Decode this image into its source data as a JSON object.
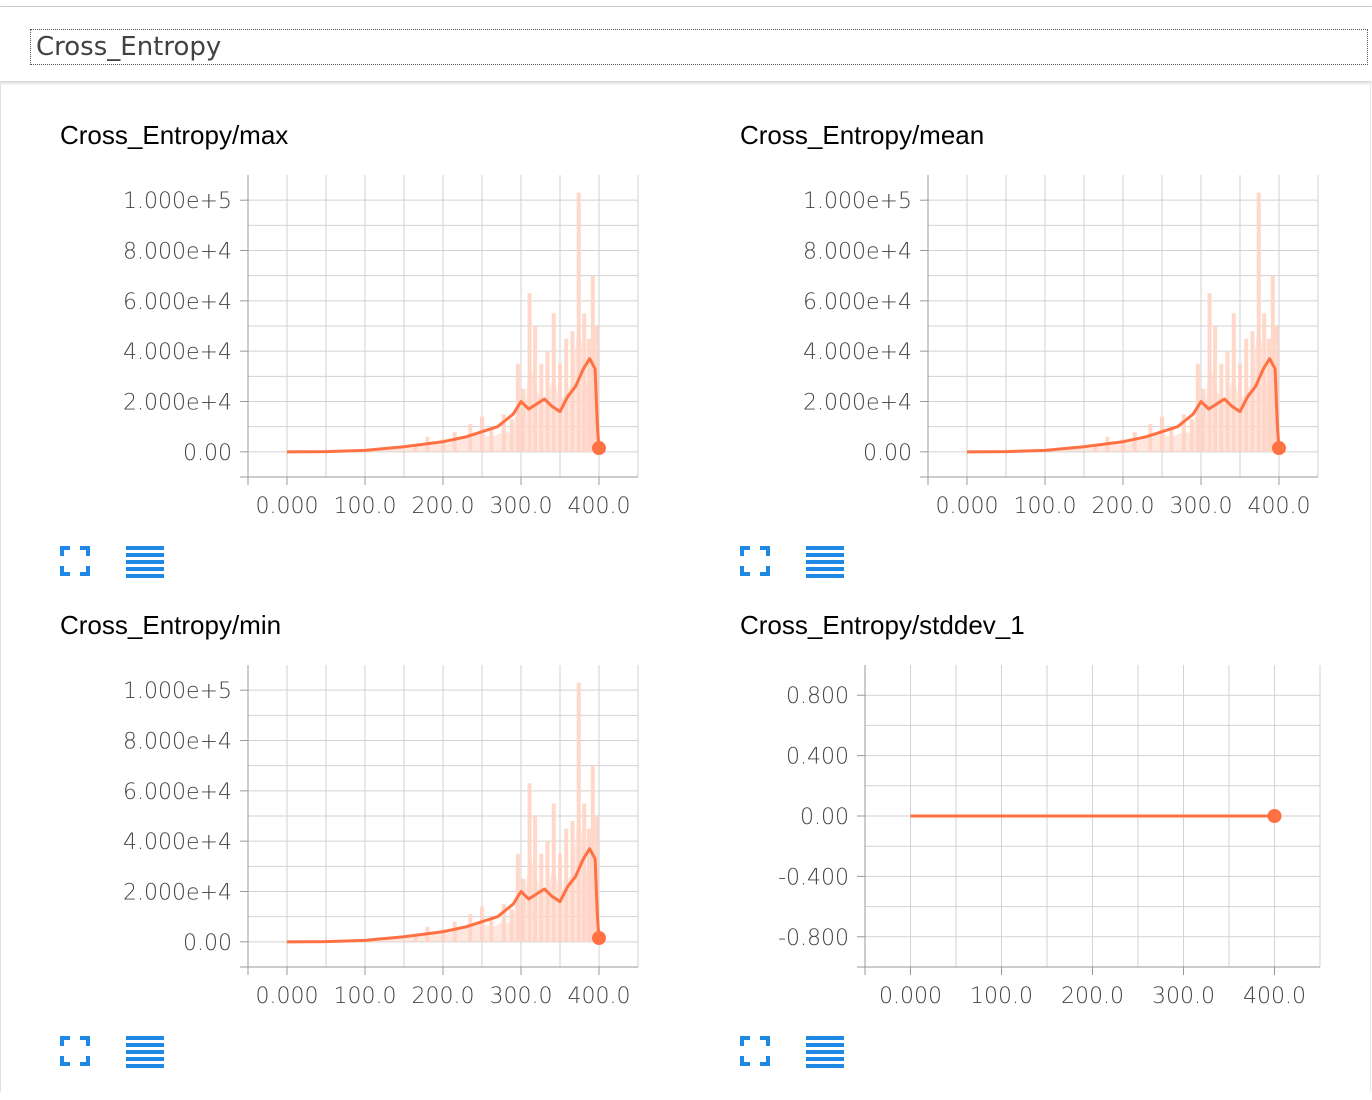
{
  "category": {
    "title": "Cross_Entropy"
  },
  "colors": {
    "line": "#ff7043",
    "raw": "#ffd4c4",
    "grid": "#d2d2d2",
    "icon": "#1e88e5"
  },
  "icons": {
    "expand": "fullscreen-icon",
    "data": "list-icon"
  },
  "charts": [
    {
      "title": "Cross_Entropy/max",
      "yticks": [
        "1.000e+5",
        "8.000e+4",
        "6.000e+4",
        "4.000e+4",
        "2.000e+4",
        "0.00"
      ],
      "xticks": [
        "0.000",
        "100.0",
        "200.0",
        "300.0",
        "400.0"
      ]
    },
    {
      "title": "Cross_Entropy/mean",
      "yticks": [
        "1.000e+5",
        "8.000e+4",
        "6.000e+4",
        "4.000e+4",
        "2.000e+4",
        "0.00"
      ],
      "xticks": [
        "0.000",
        "100.0",
        "200.0",
        "300.0",
        "400.0"
      ]
    },
    {
      "title": "Cross_Entropy/min",
      "yticks": [
        "1.000e+5",
        "8.000e+4",
        "6.000e+4",
        "4.000e+4",
        "2.000e+4",
        "0.00"
      ],
      "xticks": [
        "0.000",
        "100.0",
        "200.0",
        "300.0",
        "400.0"
      ]
    },
    {
      "title": "Cross_Entropy/stddev_1",
      "yticks": [
        "0.800",
        "0.400",
        "0.00",
        "-0.400",
        "-0.800"
      ],
      "xticks": [
        "0.000",
        "100.0",
        "200.0",
        "300.0",
        "400.0"
      ]
    }
  ],
  "chart_data": [
    {
      "type": "line",
      "title": "Cross_Entropy/max",
      "xlim": [
        -50,
        450
      ],
      "ylim": [
        -10000,
        110000
      ],
      "x": [
        0,
        50,
        100,
        150,
        200,
        230,
        250,
        270,
        290,
        300,
        310,
        320,
        330,
        340,
        350,
        360,
        370,
        380,
        388,
        395,
        398,
        400
      ],
      "y": [
        0,
        100,
        600,
        2000,
        4000,
        6000,
        8000,
        10000,
        15000,
        20000,
        17000,
        19000,
        21000,
        18000,
        16000,
        22000,
        26000,
        33000,
        37000,
        33000,
        10000,
        1500
      ],
      "raw_peaks_x": [
        165,
        180,
        200,
        215,
        235,
        250,
        262,
        278,
        288,
        296,
        303,
        311,
        318,
        326,
        334,
        342,
        350,
        358,
        366,
        374,
        381,
        387,
        392,
        397
      ],
      "raw_peaks_y": [
        3000,
        6000,
        5000,
        8000,
        11000,
        14000,
        10000,
        15000,
        13000,
        35000,
        25000,
        63000,
        50000,
        35000,
        40000,
        55000,
        35000,
        45000,
        48000,
        103000,
        55000,
        45000,
        70000,
        50000
      ]
    },
    {
      "type": "line",
      "title": "Cross_Entropy/mean",
      "xlim": [
        -50,
        450
      ],
      "ylim": [
        -10000,
        110000
      ],
      "x": [
        0,
        50,
        100,
        150,
        200,
        230,
        250,
        270,
        290,
        300,
        310,
        320,
        330,
        340,
        350,
        360,
        370,
        380,
        388,
        395,
        398,
        400
      ],
      "y": [
        0,
        100,
        600,
        2000,
        4000,
        6000,
        8000,
        10000,
        15000,
        20000,
        17000,
        19000,
        21000,
        18000,
        16000,
        22000,
        26000,
        33000,
        37000,
        33000,
        10000,
        1500
      ],
      "raw_peaks_x": [
        165,
        180,
        200,
        215,
        235,
        250,
        262,
        278,
        288,
        296,
        303,
        311,
        318,
        326,
        334,
        342,
        350,
        358,
        366,
        374,
        381,
        387,
        392,
        397
      ],
      "raw_peaks_y": [
        3000,
        6000,
        5000,
        8000,
        11000,
        14000,
        10000,
        15000,
        13000,
        35000,
        25000,
        63000,
        50000,
        35000,
        40000,
        55000,
        35000,
        45000,
        48000,
        103000,
        55000,
        45000,
        70000,
        50000
      ]
    },
    {
      "type": "line",
      "title": "Cross_Entropy/min",
      "xlim": [
        -50,
        450
      ],
      "ylim": [
        -10000,
        110000
      ],
      "x": [
        0,
        50,
        100,
        150,
        200,
        230,
        250,
        270,
        290,
        300,
        310,
        320,
        330,
        340,
        350,
        360,
        370,
        380,
        388,
        395,
        398,
        400
      ],
      "y": [
        0,
        100,
        600,
        2000,
        4000,
        6000,
        8000,
        10000,
        15000,
        20000,
        17000,
        19000,
        21000,
        18000,
        16000,
        22000,
        26000,
        33000,
        37000,
        33000,
        10000,
        1500
      ],
      "raw_peaks_x": [
        165,
        180,
        200,
        215,
        235,
        250,
        262,
        278,
        288,
        296,
        303,
        311,
        318,
        326,
        334,
        342,
        350,
        358,
        366,
        374,
        381,
        387,
        392,
        397
      ],
      "raw_peaks_y": [
        3000,
        6000,
        5000,
        8000,
        11000,
        14000,
        10000,
        15000,
        13000,
        35000,
        25000,
        63000,
        50000,
        35000,
        40000,
        55000,
        35000,
        45000,
        48000,
        103000,
        55000,
        45000,
        70000,
        50000
      ]
    },
    {
      "type": "line",
      "title": "Cross_Entropy/stddev_1",
      "xlim": [
        -50,
        450
      ],
      "ylim": [
        -1.0,
        1.0
      ],
      "x": [
        0,
        400
      ],
      "y": [
        0,
        0
      ],
      "raw_peaks_x": [],
      "raw_peaks_y": []
    }
  ]
}
